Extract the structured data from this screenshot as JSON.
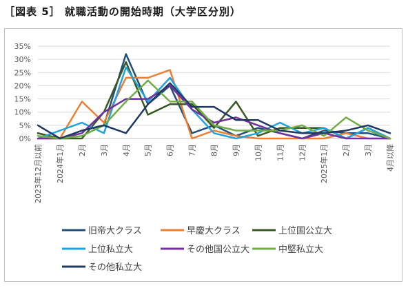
{
  "title": "［図表 5］ 就職活動の開始時期（大学区分別）",
  "chart_data": {
    "type": "line",
    "categories": [
      "2023年12月以前",
      "2024年1月",
      "2月",
      "3月",
      "4月",
      "5月",
      "6月",
      "7月",
      "8月",
      "9月",
      "10月",
      "11月",
      "12月",
      "2025年1月",
      "2月",
      "3月",
      "4月以降"
    ],
    "ylim": [
      0,
      35
    ],
    "yticks": [
      "0%",
      "5%",
      "10%",
      "15%",
      "20%",
      "25%",
      "30%",
      "35%"
    ],
    "grid": true,
    "legend_position": "bottom",
    "series": [
      {
        "name": "旧帝大クラス",
        "color": "#1f4e79",
        "values": [
          2,
          0,
          3,
          5,
          32,
          13,
          20,
          2,
          5,
          1,
          4,
          2,
          0,
          3,
          2,
          2,
          0
        ]
      },
      {
        "name": "早慶大クラス",
        "color": "#ed7d31",
        "values": [
          0,
          0,
          14,
          6,
          23,
          23,
          26,
          0,
          3,
          1,
          0,
          0,
          0,
          0,
          2,
          0,
          0
        ]
      },
      {
        "name": "上位国公立大",
        "color": "#385723",
        "values": [
          2,
          0,
          0,
          10,
          29,
          9,
          13,
          13,
          4,
          14,
          1,
          4,
          4,
          4,
          0,
          4,
          0
        ]
      },
      {
        "name": "上位私立大",
        "color": "#1fa2e0",
        "values": [
          0,
          3,
          6,
          2,
          27,
          14,
          23,
          11,
          2,
          0,
          2,
          6,
          2,
          4,
          0,
          4,
          0
        ]
      },
      {
        "name": "その他国公立大",
        "color": "#7030a0",
        "values": [
          0,
          0,
          2,
          10,
          15,
          15,
          20,
          11,
          6,
          8,
          5,
          2,
          0,
          2,
          0,
          0,
          0
        ]
      },
      {
        "name": "中堅私立大",
        "color": "#70ad47",
        "values": [
          1,
          0,
          1,
          5,
          14,
          22,
          14,
          14,
          5,
          3,
          3,
          3,
          5,
          1,
          8,
          3,
          0
        ]
      },
      {
        "name": "その他私立大",
        "color": "#203864",
        "values": [
          5,
          0,
          3,
          5,
          2,
          13,
          21,
          12,
          12,
          7,
          7,
          3,
          2,
          2,
          3,
          5,
          2
        ]
      }
    ]
  }
}
